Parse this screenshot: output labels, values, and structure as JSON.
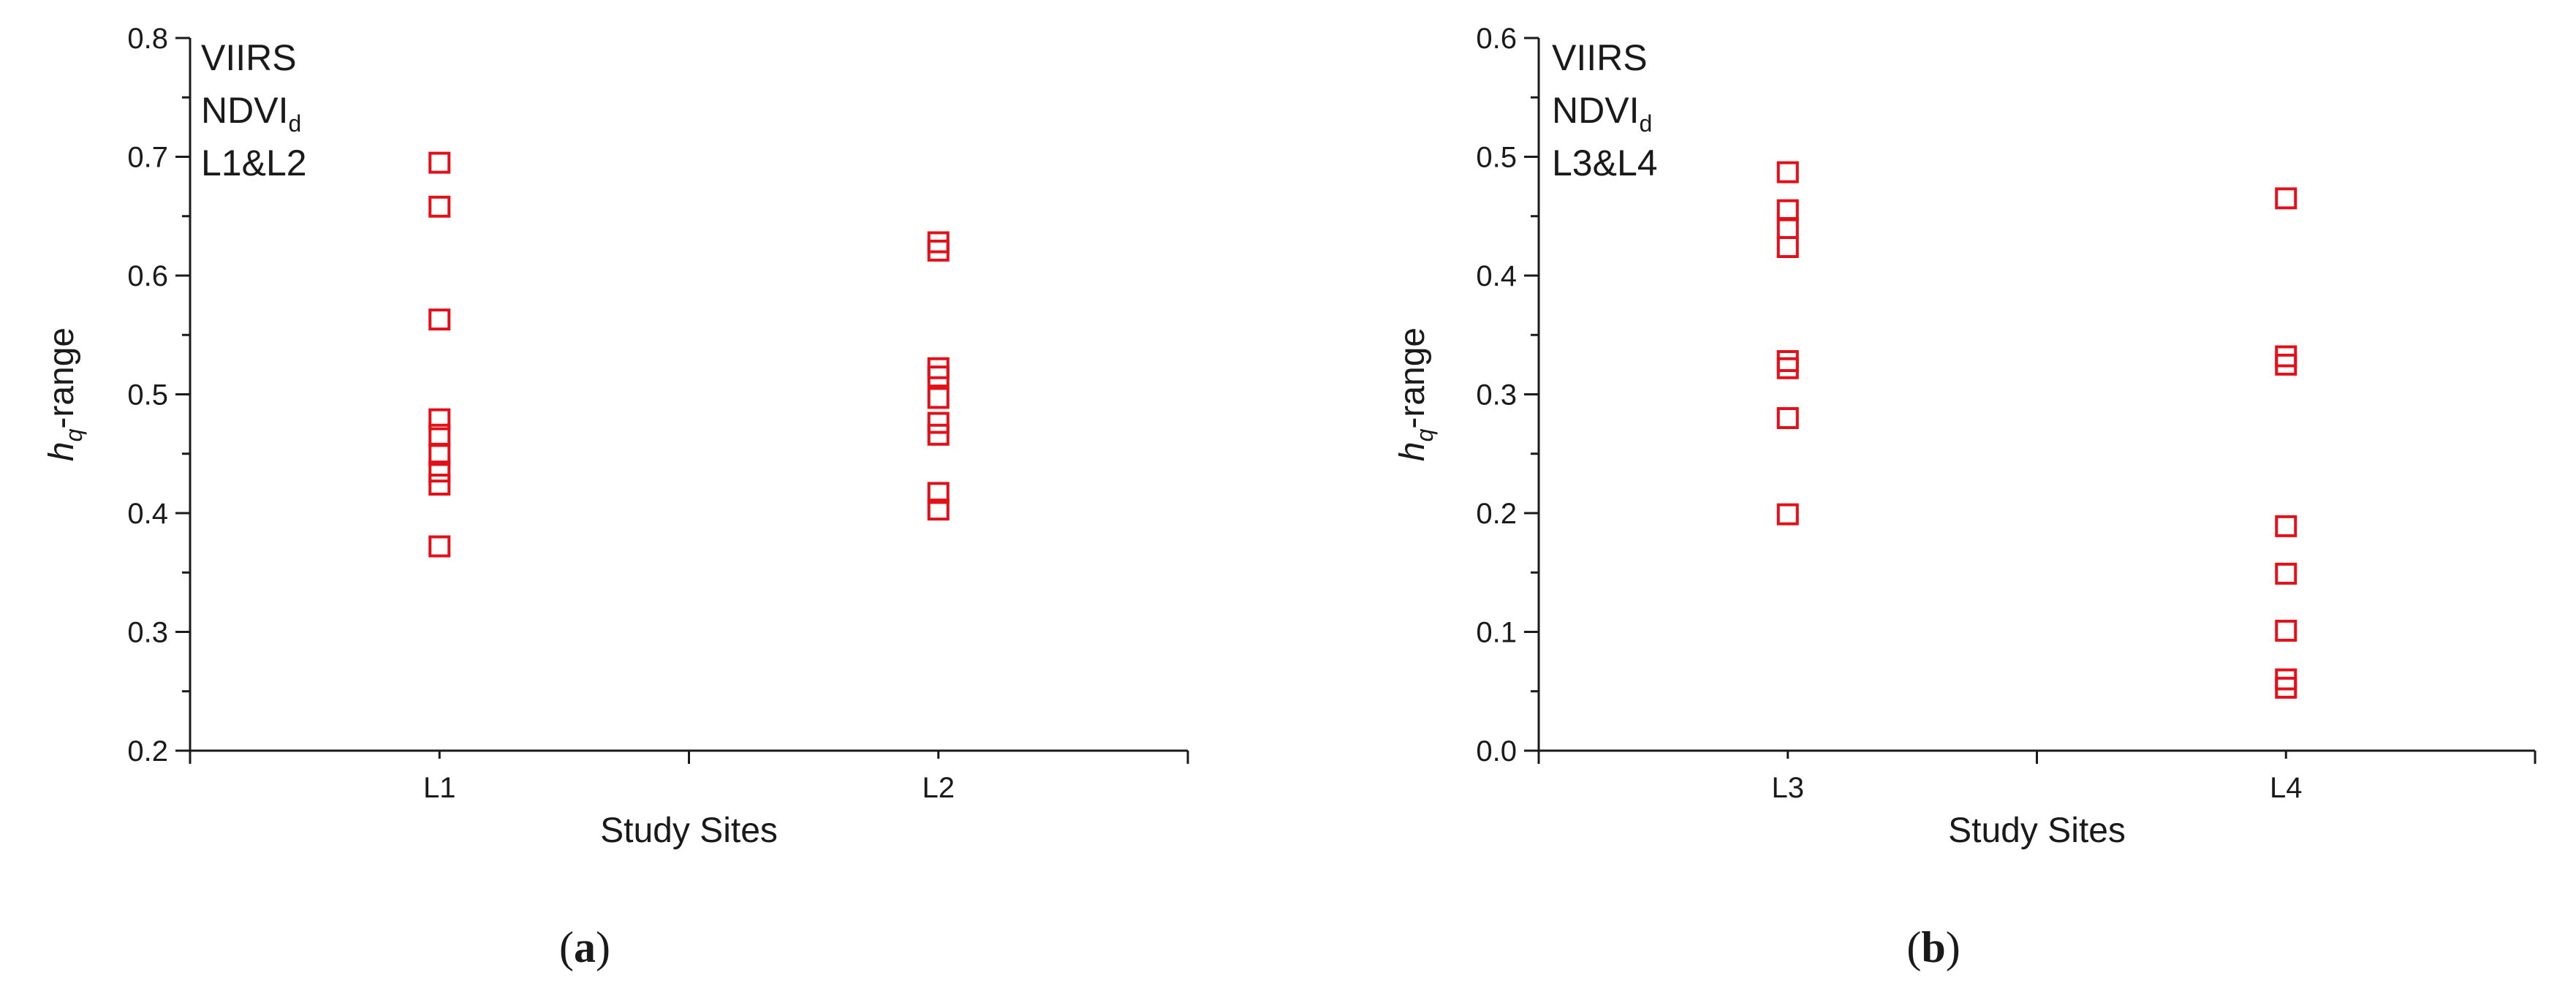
{
  "chart_data": [
    {
      "type": "scatter",
      "panel_label": "(a)",
      "annotation": [
        "VIIRS",
        "NDVI",
        "d",
        "L1&L2"
      ],
      "ylabel_main": "h",
      "ylabel_sub": "q",
      "ylabel_suffix": "-range",
      "xlabel": "Study Sites",
      "ylim": [
        0.2,
        0.8
      ],
      "yticks": [
        "0.2",
        "0.3",
        "0.4",
        "0.5",
        "0.6",
        "0.7",
        "0.8"
      ],
      "categories": [
        "L1",
        "L2"
      ],
      "grid": false,
      "marker": "open-square",
      "marker_color": "#e3101a",
      "series": [
        {
          "category": "L1",
          "values": [
            0.695,
            0.658,
            0.563,
            0.479,
            0.466,
            0.449,
            0.435,
            0.424,
            0.372
          ]
        },
        {
          "category": "L2",
          "values": [
            0.628,
            0.621,
            0.522,
            0.515,
            0.497,
            0.476,
            0.466,
            0.417,
            0.403
          ]
        }
      ]
    },
    {
      "type": "scatter",
      "panel_label": "(b)",
      "annotation": [
        "VIIRS",
        "NDVI",
        "d",
        "L3&L4"
      ],
      "ylabel_main": "h",
      "ylabel_sub": "q",
      "ylabel_suffix": "-range",
      "xlabel": "Study Sites",
      "ylim": [
        0.0,
        0.6
      ],
      "yticks": [
        "0.0",
        "0.1",
        "0.2",
        "0.3",
        "0.4",
        "0.5",
        "0.6"
      ],
      "categories": [
        "L3",
        "L4"
      ],
      "grid": false,
      "marker": "open-square",
      "marker_color": "#e3101a",
      "series": [
        {
          "category": "L3",
          "values": [
            0.487,
            0.455,
            0.44,
            0.424,
            0.328,
            0.322,
            0.28,
            0.199
          ]
        },
        {
          "category": "L4",
          "values": [
            0.465,
            0.332,
            0.325,
            0.189,
            0.149,
            0.101,
            0.06,
            0.053
          ]
        }
      ]
    }
  ]
}
